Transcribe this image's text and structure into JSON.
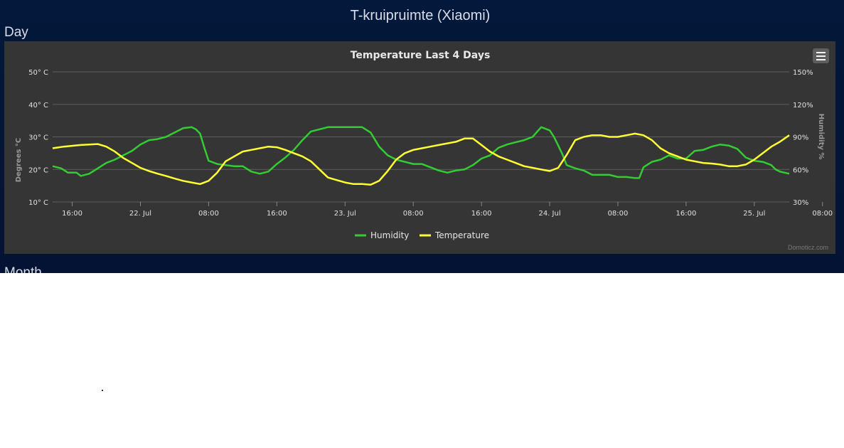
{
  "page": {
    "title": "T-kruipruimte (Xiaomi)",
    "section_day": "Day",
    "section_month": "Month"
  },
  "chart_menu_icon": "hamburger-menu-icon",
  "credit": "Domoticz.com",
  "chart_data": {
    "type": "line",
    "title": "Temperature Last 4 Days",
    "background": "#353535",
    "grid": true,
    "legend_placement": "bottom-center",
    "x_ticks": [
      "16:00",
      "22. Jul",
      "08:00",
      "16:00",
      "23. Jul",
      "08:00",
      "16:00",
      "24. Jul",
      "08:00",
      "16:00",
      "25. Jul",
      "08:00"
    ],
    "x_range_hours": [
      -2.3,
      84.1
    ],
    "y_left": {
      "label": "Degrees °C",
      "ticks": [
        "10° C",
        "20° C",
        "30° C",
        "40° C",
        "50° C"
      ],
      "range": [
        10,
        50
      ]
    },
    "y_right": {
      "label": "Humidity %",
      "ticks": [
        "30%",
        "60%",
        "90%",
        "120%",
        "150%"
      ],
      "range": [
        30,
        150
      ]
    },
    "series": [
      {
        "name": "Humidity",
        "axis": "right",
        "color": "#33cc33",
        "x": [
          -2.3,
          -1.3,
          -0.5,
          0.5,
          1.0,
          2.0,
          3.0,
          4.0,
          5.0,
          6.0,
          7.0,
          8.0,
          9.0,
          10.0,
          11.0,
          12.0,
          13.0,
          14.0,
          14.5,
          15.0,
          15.5,
          16.0,
          17.0,
          18.0,
          19.0,
          20.0,
          21.0,
          22.0,
          23.0,
          24.0,
          25.0,
          26.0,
          27.0,
          28.0,
          30.0,
          32.0,
          34.0,
          35.0,
          36.0,
          37.0,
          38.0,
          39.0,
          40.0,
          41.0,
          42.0,
          43.0,
          44.0,
          45.0,
          46.0,
          47.0,
          48.0,
          49.0,
          50.0,
          51.0,
          52.0,
          53.0,
          54.0,
          55.0,
          56.0,
          56.5,
          57.0,
          57.5,
          58.0,
          59.0,
          60.0,
          61.0,
          62.0,
          63.0,
          64.0,
          65.0,
          66.0,
          66.5,
          67.0,
          68.0,
          69.0,
          70.0,
          71.0,
          72.0,
          73.0,
          74.0,
          75.0,
          76.0,
          77.0,
          78.0,
          79.0,
          80.0,
          81.0,
          82.0,
          82.5,
          83.0,
          84.1
        ],
        "values": [
          63,
          61,
          57,
          57,
          54,
          56,
          61,
          66,
          69,
          73,
          77,
          83,
          87,
          88,
          90,
          94,
          98,
          99,
          97,
          93,
          80,
          68,
          65,
          64,
          63,
          63,
          58,
          56,
          58,
          65,
          71,
          78,
          87,
          95,
          99,
          99,
          99,
          94,
          81,
          73,
          69,
          67,
          65,
          65,
          62,
          59,
          57,
          59,
          60,
          64,
          70,
          73,
          80,
          83,
          85,
          87,
          90,
          99,
          96,
          90,
          82,
          74,
          64,
          61,
          59,
          55,
          55,
          55,
          53,
          53,
          52,
          52,
          62,
          67,
          69,
          73,
          70,
          70,
          77,
          78,
          81,
          83,
          82,
          79,
          71,
          68,
          67,
          64,
          60,
          58,
          56
        ]
      },
      {
        "name": "Temperature",
        "axis": "left",
        "color": "#ffff33",
        "x": [
          -2.3,
          -1.0,
          1.0,
          3.0,
          4.0,
          5.0,
          6.0,
          7.0,
          8.0,
          9.0,
          10.0,
          11.0,
          12.0,
          13.0,
          14.0,
          15.0,
          16.0,
          17.0,
          18.0,
          19.0,
          20.0,
          21.0,
          22.0,
          23.0,
          24.0,
          25.0,
          26.0,
          27.0,
          28.0,
          30.0,
          32.0,
          33.0,
          34.0,
          35.0,
          36.0,
          37.0,
          38.0,
          39.0,
          40.0,
          41.0,
          42.0,
          43.0,
          44.0,
          45.0,
          46.0,
          47.0,
          48.0,
          49.0,
          50.0,
          51.0,
          52.0,
          53.0,
          54.0,
          55.0,
          56.0,
          57.0,
          58.0,
          59.0,
          60.0,
          61.0,
          62.0,
          63.0,
          64.0,
          65.0,
          66.0,
          67.0,
          68.0,
          69.0,
          70.0,
          71.0,
          72.0,
          73.0,
          74.0,
          75.0,
          76.0,
          77.0,
          78.0,
          79.0,
          80.0,
          81.0,
          82.0,
          83.0,
          84.1
        ],
        "values": [
          26.5,
          27.0,
          27.5,
          27.8,
          27.0,
          25.5,
          23.5,
          22.0,
          20.5,
          19.5,
          18.7,
          18.0,
          17.2,
          16.5,
          16.0,
          15.5,
          16.5,
          19.0,
          22.5,
          24.0,
          25.5,
          26.0,
          26.5,
          27.0,
          26.8,
          26.0,
          25.0,
          24.0,
          22.5,
          17.5,
          16.0,
          15.5,
          15.5,
          15.3,
          16.5,
          19.5,
          23.0,
          25.0,
          26.0,
          26.5,
          27.0,
          27.5,
          28.0,
          28.5,
          29.5,
          29.5,
          27.5,
          25.5,
          24.0,
          23.0,
          22.0,
          21.0,
          20.5,
          20.0,
          19.5,
          20.5,
          24.5,
          29.0,
          30.0,
          30.5,
          30.5,
          30.0,
          30.0,
          30.5,
          31.0,
          30.5,
          29.0,
          26.5,
          25.0,
          24.0,
          23.0,
          22.5,
          22.0,
          21.8,
          21.5,
          21.0,
          21.0,
          21.5,
          23.0,
          25.0,
          27.0,
          28.5,
          30.5
        ]
      }
    ]
  }
}
